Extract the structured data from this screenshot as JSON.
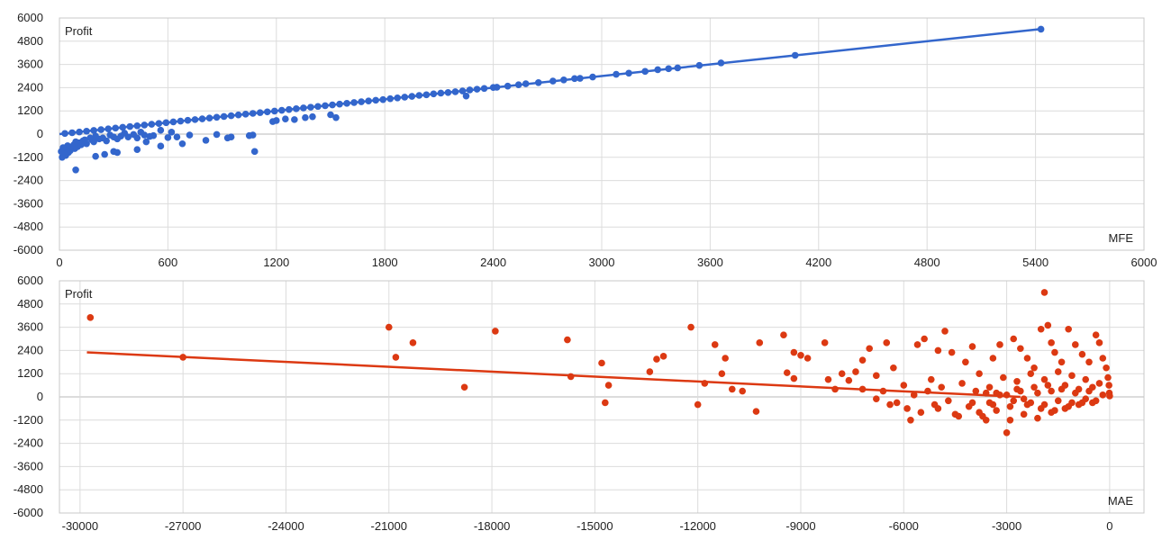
{
  "colors": {
    "grid": "#dcdcdc",
    "zero_line": "#b8b8b8",
    "border": "#c8c8c8",
    "text": "#222222"
  },
  "chart_data": [
    {
      "type": "scatter",
      "title": "",
      "xlabel": "MFE",
      "ylabel": "Profit",
      "xlim": [
        0,
        6000
      ],
      "ylim": [
        -6000,
        6000
      ],
      "xticks": [
        "0",
        "600",
        "1200",
        "1800",
        "2400",
        "3000",
        "3600",
        "4200",
        "4800",
        "5400",
        "6000"
      ],
      "yticks": [
        "6000",
        "4800",
        "3600",
        "2400",
        "1200",
        "0",
        "-1200",
        "-2400",
        "-3600",
        "-4800",
        "-6000"
      ],
      "grid": true,
      "color": "#3366cc",
      "trendline": {
        "from": [
          0,
          0
        ],
        "to": [
          5430,
          5430
        ]
      },
      "points": [
        [
          5430,
          5420
        ],
        [
          4070,
          4070
        ],
        [
          3660,
          3680
        ],
        [
          3540,
          3550
        ],
        [
          3420,
          3420
        ],
        [
          3370,
          3380
        ],
        [
          3310,
          3330
        ],
        [
          3240,
          3240
        ],
        [
          3150,
          3150
        ],
        [
          3080,
          3090
        ],
        [
          2950,
          2950
        ],
        [
          2880,
          2880
        ],
        [
          2850,
          2870
        ],
        [
          2790,
          2800
        ],
        [
          2730,
          2740
        ],
        [
          2650,
          2660
        ],
        [
          2580,
          2600
        ],
        [
          2540,
          2550
        ],
        [
          2480,
          2480
        ],
        [
          2420,
          2420
        ],
        [
          2400,
          2410
        ],
        [
          2350,
          2360
        ],
        [
          2310,
          2320
        ],
        [
          2270,
          2280
        ],
        [
          2230,
          2230
        ],
        [
          2190,
          2190
        ],
        [
          2150,
          2150
        ],
        [
          2110,
          2120
        ],
        [
          2070,
          2080
        ],
        [
          2030,
          2030
        ],
        [
          1990,
          2000
        ],
        [
          1950,
          1950
        ],
        [
          1910,
          1910
        ],
        [
          1870,
          1870
        ],
        [
          1830,
          1830
        ],
        [
          1790,
          1780
        ],
        [
          1750,
          1750
        ],
        [
          1710,
          1710
        ],
        [
          1670,
          1670
        ],
        [
          1630,
          1630
        ],
        [
          1590,
          1590
        ],
        [
          1550,
          1550
        ],
        [
          1510,
          1510
        ],
        [
          1470,
          1470
        ],
        [
          1430,
          1430
        ],
        [
          1390,
          1390
        ],
        [
          1350,
          1350
        ],
        [
          1310,
          1310
        ],
        [
          1270,
          1270
        ],
        [
          1230,
          1230
        ],
        [
          1190,
          1190
        ],
        [
          1150,
          1150
        ],
        [
          1110,
          1110
        ],
        [
          1070,
          1070
        ],
        [
          1030,
          1030
        ],
        [
          990,
          990
        ],
        [
          950,
          950
        ],
        [
          910,
          910
        ],
        [
          870,
          870
        ],
        [
          830,
          830
        ],
        [
          790,
          790
        ],
        [
          750,
          750
        ],
        [
          710,
          710
        ],
        [
          670,
          670
        ],
        [
          630,
          630
        ],
        [
          590,
          590
        ],
        [
          550,
          550
        ],
        [
          510,
          510
        ],
        [
          470,
          470
        ],
        [
          430,
          430
        ],
        [
          390,
          390
        ],
        [
          350,
          350
        ],
        [
          310,
          310
        ],
        [
          270,
          270
        ],
        [
          230,
          230
        ],
        [
          190,
          190
        ],
        [
          150,
          150
        ],
        [
          110,
          110
        ],
        [
          70,
          70
        ],
        [
          30,
          30
        ],
        [
          2250,
          1970
        ],
        [
          1530,
          850
        ],
        [
          1500,
          1000
        ],
        [
          1400,
          900
        ],
        [
          1360,
          850
        ],
        [
          1300,
          750
        ],
        [
          1250,
          780
        ],
        [
          1200,
          700
        ],
        [
          1180,
          650
        ],
        [
          1080,
          -900
        ],
        [
          1070,
          -50
        ],
        [
          950,
          -150
        ],
        [
          870,
          -20
        ],
        [
          720,
          -50
        ],
        [
          650,
          -150
        ],
        [
          620,
          100
        ],
        [
          600,
          -180
        ],
        [
          560,
          200
        ],
        [
          520,
          -80
        ],
        [
          500,
          -120
        ],
        [
          470,
          -50
        ],
        [
          450,
          100
        ],
        [
          430,
          -200
        ],
        [
          410,
          -20
        ],
        [
          380,
          -150
        ],
        [
          360,
          50
        ],
        [
          340,
          -100
        ],
        [
          320,
          -250
        ],
        [
          300,
          -150
        ],
        [
          280,
          -50
        ],
        [
          260,
          -350
        ],
        [
          240,
          -200
        ],
        [
          220,
          -250
        ],
        [
          200,
          -100
        ],
        [
          190,
          -400
        ],
        [
          180,
          -300
        ],
        [
          170,
          -200
        ],
        [
          150,
          -500
        ],
        [
          140,
          -300
        ],
        [
          130,
          -350
        ],
        [
          120,
          -550
        ],
        [
          110,
          -450
        ],
        [
          100,
          -650
        ],
        [
          90,
          -400
        ],
        [
          85,
          -750
        ],
        [
          80,
          -550
        ],
        [
          70,
          -650
        ],
        [
          60,
          -850
        ],
        [
          55,
          -700
        ],
        [
          50,
          -950
        ],
        [
          45,
          -600
        ],
        [
          40,
          -900
        ],
        [
          35,
          -1100
        ],
        [
          30,
          -800
        ],
        [
          25,
          -1050
        ],
        [
          20,
          -700
        ],
        [
          15,
          -1200
        ],
        [
          10,
          -900
        ],
        [
          90,
          -1850
        ],
        [
          200,
          -1150
        ],
        [
          250,
          -1050
        ],
        [
          320,
          -950
        ],
        [
          430,
          -800
        ],
        [
          560,
          -620
        ],
        [
          680,
          -500
        ],
        [
          810,
          -320
        ],
        [
          930,
          -200
        ],
        [
          1050,
          -80
        ],
        [
          300,
          -900
        ],
        [
          480,
          -400
        ]
      ]
    },
    {
      "type": "scatter",
      "title": "",
      "xlabel": "MAE",
      "ylabel": "Profit",
      "xlim": [
        -30600,
        1000
      ],
      "ylim": [
        -6000,
        6000
      ],
      "xticks": [
        "-30000",
        "-27000",
        "-24000",
        "-21000",
        "-18000",
        "-15000",
        "-12000",
        "-9000",
        "-6000",
        "-3000",
        "0"
      ],
      "yticks": [
        "6000",
        "4800",
        "3600",
        "2400",
        "1200",
        "0",
        "-1200",
        "-2400",
        "-3600",
        "-4800",
        "-6000"
      ],
      "grid": true,
      "color": "#dc3912",
      "trendline": {
        "from": [
          -29800,
          2300
        ],
        "to": [
          -2600,
          0
        ]
      },
      "points": [
        [
          -29700,
          4100
        ],
        [
          -27000,
          2050
        ],
        [
          -21000,
          3600
        ],
        [
          -20800,
          2050
        ],
        [
          -20300,
          2800
        ],
        [
          -18800,
          500
        ],
        [
          -17900,
          3400
        ],
        [
          -15800,
          2950
        ],
        [
          -15700,
          1050
        ],
        [
          -14800,
          1750
        ],
        [
          -14700,
          -300
        ],
        [
          -14600,
          600
        ],
        [
          -13400,
          1300
        ],
        [
          -13200,
          1950
        ],
        [
          -13000,
          2100
        ],
        [
          -12200,
          3600
        ],
        [
          -12000,
          -400
        ],
        [
          -11800,
          700
        ],
        [
          -11500,
          2700
        ],
        [
          -11300,
          1200
        ],
        [
          -11200,
          2000
        ],
        [
          -11000,
          400
        ],
        [
          -10700,
          300
        ],
        [
          -10300,
          -750
        ],
        [
          -10200,
          2800
        ],
        [
          -9500,
          3200
        ],
        [
          -9400,
          1250
        ],
        [
          -9200,
          2300
        ],
        [
          -9200,
          950
        ],
        [
          -9000,
          2150
        ],
        [
          -8800,
          2000
        ],
        [
          -8300,
          2800
        ],
        [
          -8200,
          900
        ],
        [
          -8000,
          400
        ],
        [
          -7800,
          1200
        ],
        [
          -7600,
          850
        ],
        [
          -7400,
          1300
        ],
        [
          -7200,
          1900
        ],
        [
          -7000,
          2500
        ],
        [
          -6800,
          1100
        ],
        [
          -6500,
          2800
        ],
        [
          -6300,
          1500
        ],
        [
          -6000,
          600
        ],
        [
          -5800,
          -1200
        ],
        [
          -5600,
          2700
        ],
        [
          -5400,
          3000
        ],
        [
          -5200,
          900
        ],
        [
          -5000,
          2400
        ],
        [
          -4800,
          3400
        ],
        [
          -4600,
          2300
        ],
        [
          -4400,
          -1000
        ],
        [
          -4200,
          1800
        ],
        [
          -4000,
          2600
        ],
        [
          -3800,
          1200
        ],
        [
          -3600,
          -1200
        ],
        [
          -3400,
          2000
        ],
        [
          -3200,
          2700
        ],
        [
          -3000,
          -1850
        ],
        [
          -2800,
          3000
        ],
        [
          -2600,
          2500
        ],
        [
          -2400,
          2000
        ],
        [
          -2200,
          1500
        ],
        [
          -2000,
          3500
        ],
        [
          -1900,
          5400
        ],
        [
          -1800,
          3700
        ],
        [
          -1700,
          2800
        ],
        [
          -1600,
          2300
        ],
        [
          -1400,
          1800
        ],
        [
          -1200,
          3500
        ],
        [
          -1000,
          2700
        ],
        [
          -800,
          2200
        ],
        [
          -600,
          1800
        ],
        [
          -400,
          3200
        ],
        [
          -300,
          2800
        ],
        [
          -200,
          2000
        ],
        [
          -100,
          1500
        ],
        [
          -50,
          1000
        ],
        [
          -20,
          600
        ],
        [
          -10,
          200
        ],
        [
          0,
          50
        ],
        [
          -6200,
          -300
        ],
        [
          -5900,
          -600
        ],
        [
          -5700,
          100
        ],
        [
          -5500,
          -800
        ],
        [
          -5300,
          300
        ],
        [
          -5100,
          -400
        ],
        [
          -4900,
          500
        ],
        [
          -4700,
          -200
        ],
        [
          -4500,
          -900
        ],
        [
          -4300,
          700
        ],
        [
          -4100,
          -500
        ],
        [
          -3900,
          300
        ],
        [
          -3700,
          -1000
        ],
        [
          -3500,
          500
        ],
        [
          -3300,
          -700
        ],
        [
          -3100,
          1000
        ],
        [
          -2900,
          -1200
        ],
        [
          -2700,
          800
        ],
        [
          -2500,
          -900
        ],
        [
          -2300,
          1200
        ],
        [
          -2100,
          -1100
        ],
        [
          -1900,
          900
        ],
        [
          -1700,
          -800
        ],
        [
          -1500,
          1300
        ],
        [
          -1300,
          -600
        ],
        [
          -1100,
          1100
        ],
        [
          -900,
          -400
        ],
        [
          -700,
          900
        ],
        [
          -500,
          -300
        ],
        [
          -300,
          700
        ],
        [
          -3000,
          100
        ],
        [
          -2800,
          -200
        ],
        [
          -2600,
          300
        ],
        [
          -2400,
          -400
        ],
        [
          -2200,
          500
        ],
        [
          -2000,
          -600
        ],
        [
          -1800,
          600
        ],
        [
          -1600,
          -700
        ],
        [
          -1400,
          400
        ],
        [
          -1200,
          -500
        ],
        [
          -1000,
          200
        ],
        [
          -800,
          -300
        ],
        [
          -600,
          300
        ],
        [
          -400,
          -200
        ],
        [
          -200,
          100
        ],
        [
          -3500,
          -300
        ],
        [
          -3300,
          200
        ],
        [
          -2900,
          -500
        ],
        [
          -2700,
          400
        ],
        [
          -2500,
          -100
        ],
        [
          -2300,
          -300
        ],
        [
          -2100,
          200
        ],
        [
          -1900,
          -400
        ],
        [
          -1700,
          300
        ],
        [
          -1500,
          -200
        ],
        [
          -1300,
          600
        ],
        [
          -1100,
          -300
        ],
        [
          -900,
          400
        ],
        [
          -700,
          -100
        ],
        [
          -500,
          500
        ],
        [
          -7200,
          400
        ],
        [
          -6800,
          -100
        ],
        [
          -6600,
          300
        ],
        [
          -6400,
          -400
        ],
        [
          -5000,
          -600
        ],
        [
          -4000,
          -300
        ],
        [
          -3800,
          -800
        ],
        [
          -3600,
          200
        ],
        [
          -3400,
          -400
        ],
        [
          -3200,
          100
        ]
      ]
    }
  ]
}
